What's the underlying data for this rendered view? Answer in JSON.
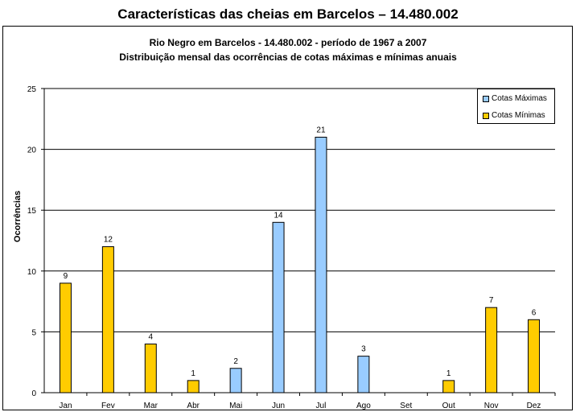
{
  "page_title": "Características das cheias em Barcelos – 14.480.002",
  "chart_data": {
    "type": "bar",
    "title": "Rio Negro em Barcelos - 14.480.002 - período de 1967 a 2007",
    "subtitle": "Distribuição mensal das ocorrências de cotas máximas e mínimas anuais",
    "xlabel": "",
    "ylabel": "Ocorrências",
    "ylim": [
      0,
      25
    ],
    "yticks": [
      "0",
      "5",
      "10",
      "15",
      "20",
      "25"
    ],
    "categories": [
      "Jan",
      "Fev",
      "Mar",
      "Abr",
      "Mai",
      "Jun",
      "Jul",
      "Ago",
      "Set",
      "Out",
      "Nov",
      "Dez"
    ],
    "series": [
      {
        "name": "Cotas Máximas",
        "color": "#99ccff",
        "values": [
          0,
          0,
          0,
          0,
          2,
          14,
          21,
          3,
          0,
          0,
          0,
          0
        ]
      },
      {
        "name": "Cotas Mínimas",
        "color": "#ffcc00",
        "values": [
          9,
          12,
          4,
          1,
          0,
          0,
          0,
          0,
          0,
          1,
          7,
          6
        ]
      }
    ],
    "grid": true,
    "legend_position": "top-right"
  }
}
